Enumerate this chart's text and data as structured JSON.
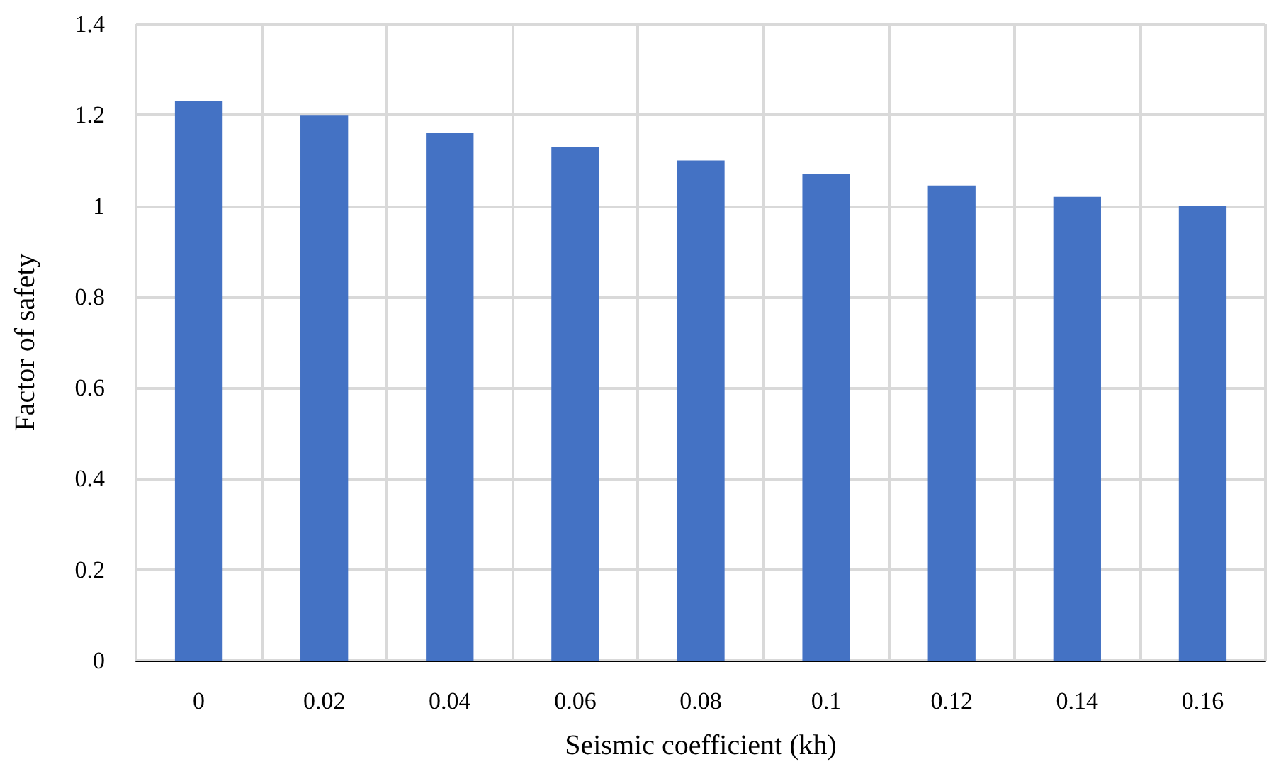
{
  "chart_data": {
    "type": "bar",
    "xlabel": "Seismic coefficient (kh)",
    "ylabel": "Factor of safety",
    "categories": [
      "0",
      "0.02",
      "0.04",
      "0.06",
      "0.08",
      "0.1",
      "0.12",
      "0.14",
      "0.16"
    ],
    "values": [
      1.23,
      1.2,
      1.16,
      1.13,
      1.1,
      1.07,
      1.045,
      1.02,
      1.0
    ],
    "color": "#4472c4",
    "ylim": [
      0,
      1.4
    ],
    "yticks": [
      0,
      0.2,
      0.4,
      0.6,
      0.8,
      1,
      1.2,
      1.4
    ],
    "grid": true
  }
}
